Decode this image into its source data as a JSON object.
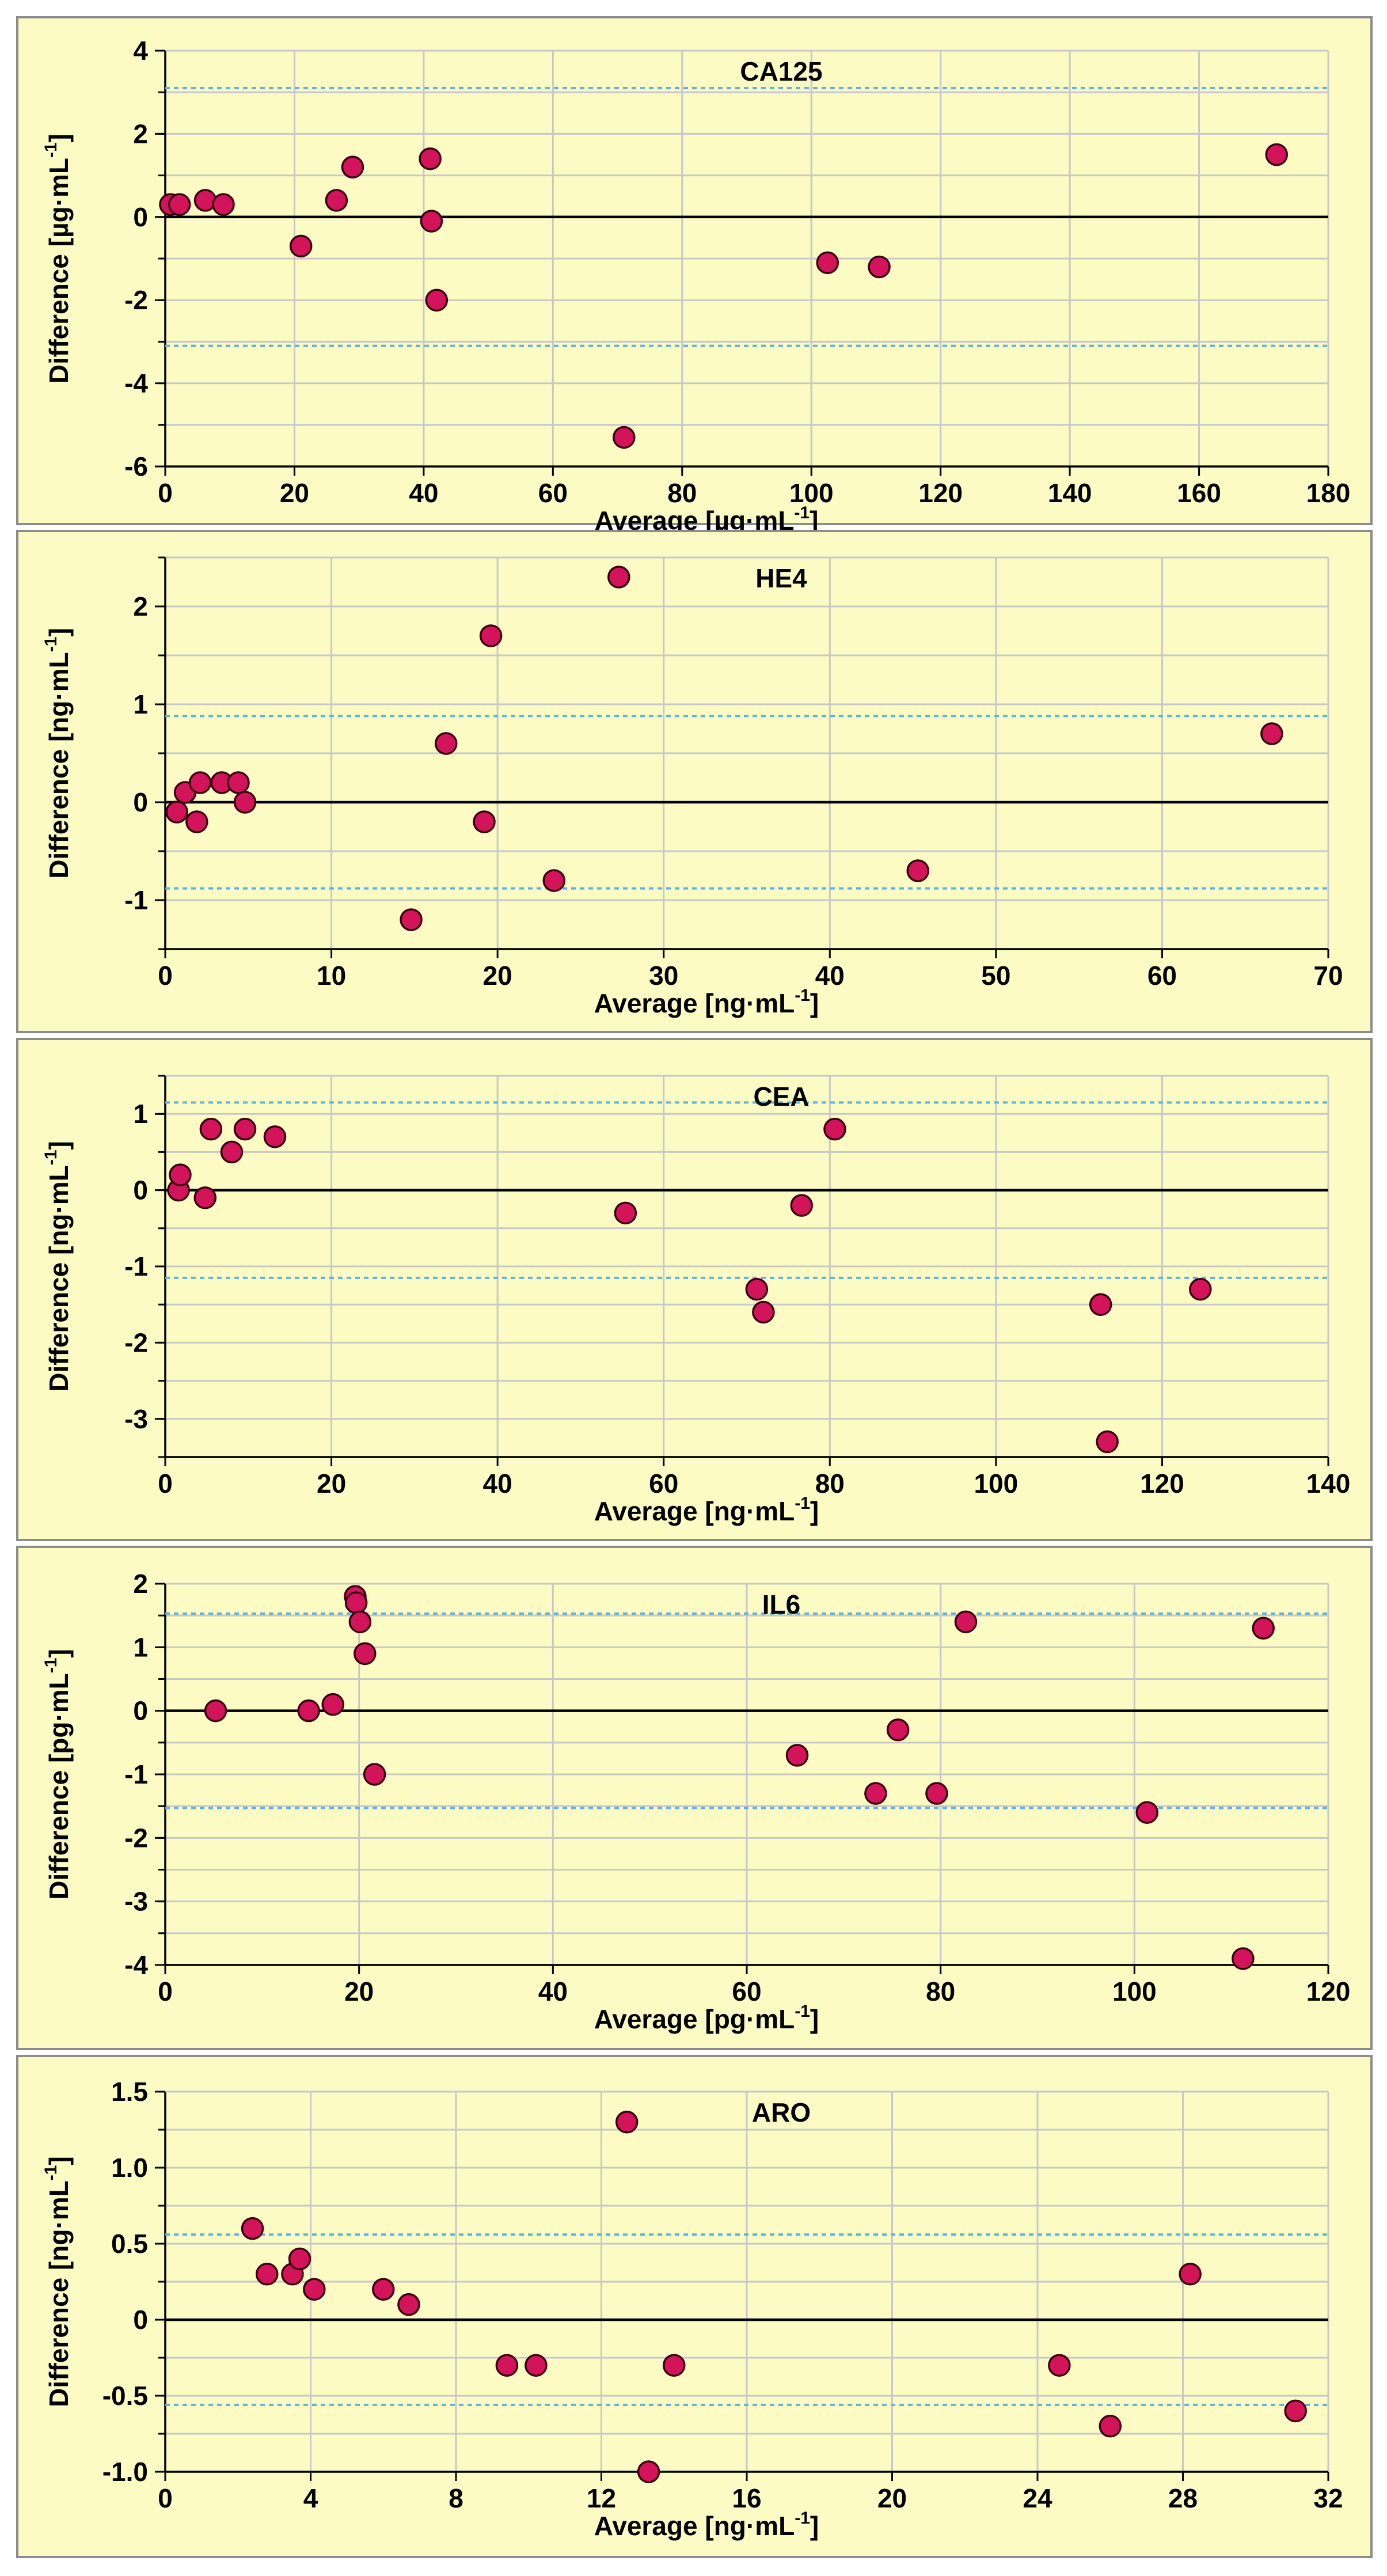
{
  "chart_data": [
    {
      "type": "scatter",
      "title": "CA125",
      "xlabel": "Average [µg·mL",
      "ylabel": "Difference [µg·mL",
      "unit_exponent": "-1",
      "xlim": [
        0,
        180
      ],
      "ylim": [
        -6,
        4
      ],
      "x_ticks": [
        0,
        20,
        40,
        60,
        80,
        100,
        120,
        140,
        160,
        180
      ],
      "y_ticks": [
        -6,
        -4,
        -2,
        0,
        2,
        4
      ],
      "x_tick_labels": [
        "0",
        "20",
        "40",
        "60",
        "80",
        "100",
        "120",
        "140",
        "160",
        "180"
      ],
      "y_tick_labels": [
        "-6",
        "-4",
        "-2",
        "0",
        "2",
        "4"
      ],
      "limits_of_agreement": [
        3.1,
        -3.1
      ],
      "points": [
        [
          0.8,
          0.3
        ],
        [
          2.2,
          0.3
        ],
        [
          6.2,
          0.4
        ],
        [
          9.0,
          0.3
        ],
        [
          21.0,
          -0.7
        ],
        [
          26.5,
          0.4
        ],
        [
          29.0,
          1.2
        ],
        [
          41.0,
          1.4
        ],
        [
          41.2,
          -0.1
        ],
        [
          42.0,
          -2.0
        ],
        [
          71.0,
          -5.3
        ],
        [
          102.5,
          -1.1
        ],
        [
          110.5,
          -1.2
        ],
        [
          172.0,
          1.5
        ]
      ]
    },
    {
      "type": "scatter",
      "title": "HE4",
      "xlabel": "Average [ng·mL",
      "ylabel": "Difference [ng·mL",
      "unit_exponent": "-1",
      "xlim": [
        0,
        70
      ],
      "ylim": [
        -1.5,
        2.5
      ],
      "x_ticks": [
        0,
        10,
        20,
        30,
        40,
        50,
        60,
        70
      ],
      "y_ticks": [
        -1,
        0,
        1,
        2
      ],
      "x_tick_labels": [
        "0",
        "10",
        "20",
        "30",
        "40",
        "50",
        "60",
        "70"
      ],
      "y_tick_labels": [
        "-1",
        "0",
        "1",
        "2"
      ],
      "limits_of_agreement": [
        0.88,
        -0.88
      ],
      "points": [
        [
          0.7,
          -0.1
        ],
        [
          1.2,
          0.1
        ],
        [
          1.9,
          -0.2
        ],
        [
          2.1,
          0.2
        ],
        [
          3.4,
          0.2
        ],
        [
          4.4,
          0.2
        ],
        [
          4.8,
          0.0
        ],
        [
          14.8,
          -1.2
        ],
        [
          16.9,
          0.6
        ],
        [
          19.2,
          -0.2
        ],
        [
          19.6,
          1.7
        ],
        [
          23.4,
          -0.8
        ],
        [
          27.3,
          2.3
        ],
        [
          45.3,
          -0.7
        ],
        [
          66.6,
          0.7
        ]
      ]
    },
    {
      "type": "scatter",
      "title": "CEA",
      "xlabel": "Average [ng·mL",
      "ylabel": "Difference [ng·mL",
      "unit_exponent": "-1",
      "xlim": [
        0,
        140
      ],
      "ylim": [
        -3.5,
        1.5
      ],
      "x_ticks": [
        0,
        20,
        40,
        60,
        80,
        100,
        120,
        140
      ],
      "y_ticks": [
        -3,
        -2,
        -1,
        0,
        1
      ],
      "x_tick_labels": [
        "0",
        "20",
        "40",
        "60",
        "80",
        "100",
        "120",
        "140"
      ],
      "y_tick_labels": [
        "-3",
        "-2",
        "-1",
        "0",
        "1"
      ],
      "limits_of_agreement": [
        1.15,
        -1.15
      ],
      "points": [
        [
          1.6,
          0.0
        ],
        [
          1.8,
          0.2
        ],
        [
          4.8,
          -0.1
        ],
        [
          5.5,
          0.8
        ],
        [
          8.0,
          0.5
        ],
        [
          9.6,
          0.8
        ],
        [
          13.2,
          0.7
        ],
        [
          55.4,
          -0.3
        ],
        [
          71.2,
          -1.3
        ],
        [
          72.0,
          -1.6
        ],
        [
          76.6,
          -0.2
        ],
        [
          80.6,
          0.8
        ],
        [
          112.6,
          -1.5
        ],
        [
          113.4,
          -3.3
        ],
        [
          124.6,
          -1.3
        ]
      ]
    },
    {
      "type": "scatter",
      "title": "IL6",
      "xlabel": "Average [pg·mL",
      "ylabel": "Difference [pg·mL",
      "unit_exponent": "-1",
      "xlim": [
        0,
        120
      ],
      "ylim": [
        -4,
        2
      ],
      "x_ticks": [
        0,
        20,
        40,
        60,
        80,
        100,
        120
      ],
      "y_ticks": [
        -4,
        -3,
        -2,
        -1,
        0,
        1,
        2
      ],
      "x_tick_labels": [
        "0",
        "20",
        "40",
        "60",
        "80",
        "100",
        "120"
      ],
      "y_tick_labels": [
        "-4",
        "-3",
        "-2",
        "-1",
        "0",
        "1",
        "2"
      ],
      "limits_of_agreement": [
        1.53,
        -1.53
      ],
      "points": [
        [
          5.2,
          0.0
        ],
        [
          14.8,
          0.0
        ],
        [
          17.3,
          0.1
        ],
        [
          19.6,
          1.8
        ],
        [
          19.7,
          1.7
        ],
        [
          20.1,
          1.4
        ],
        [
          20.6,
          0.9
        ],
        [
          21.6,
          -1.0
        ],
        [
          65.2,
          -0.7
        ],
        [
          73.3,
          -1.3
        ],
        [
          75.6,
          -0.3
        ],
        [
          79.6,
          -1.3
        ],
        [
          82.6,
          1.4
        ],
        [
          101.3,
          -1.6
        ],
        [
          111.2,
          -3.9
        ],
        [
          113.3,
          1.3
        ]
      ]
    },
    {
      "type": "scatter",
      "title": "ARO",
      "xlabel": "Average [ng·mL",
      "ylabel": "Difference [ng·mL",
      "unit_exponent": "-1",
      "xlim": [
        0,
        32
      ],
      "ylim": [
        -1.0,
        1.5
      ],
      "x_ticks": [
        0,
        4,
        8,
        12,
        16,
        20,
        24,
        28,
        32
      ],
      "y_ticks": [
        -1.0,
        -0.5,
        0,
        0.5,
        1.0,
        1.5
      ],
      "x_tick_labels": [
        "0",
        "4",
        "8",
        "12",
        "16",
        "20",
        "24",
        "28",
        "32"
      ],
      "y_tick_labels": [
        "-1.0",
        "-0.5",
        "0",
        "0.5",
        "1.0",
        "1.5"
      ],
      "limits_of_agreement": [
        0.56,
        -0.56
      ],
      "points": [
        [
          2.4,
          0.6
        ],
        [
          2.8,
          0.3
        ],
        [
          3.5,
          0.3
        ],
        [
          3.7,
          0.4
        ],
        [
          4.1,
          0.2
        ],
        [
          6.0,
          0.2
        ],
        [
          6.7,
          0.1
        ],
        [
          9.4,
          -0.3
        ],
        [
          10.2,
          -0.3
        ],
        [
          12.7,
          1.3
        ],
        [
          13.3,
          -1.0
        ],
        [
          14.0,
          -0.3
        ],
        [
          24.6,
          -0.3
        ],
        [
          26.0,
          -0.7
        ],
        [
          28.2,
          0.3
        ],
        [
          31.1,
          -0.6
        ]
      ]
    }
  ]
}
